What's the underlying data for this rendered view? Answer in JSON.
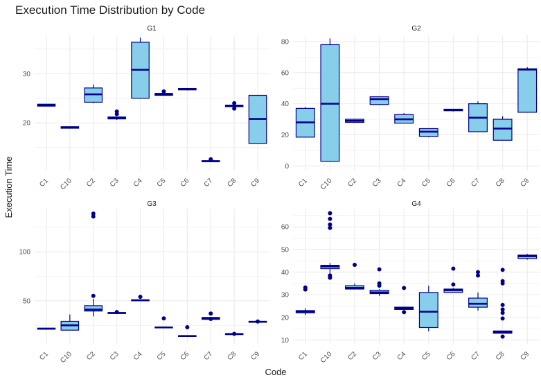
{
  "chart_data": {
    "type": "box",
    "title": "Execution Time Distribution by Code",
    "xlabel": "Code",
    "ylabel": "Execution Time",
    "categories": [
      "C1",
      "C10",
      "C2",
      "C3",
      "C4",
      "C5",
      "C6",
      "C7",
      "C8",
      "C9"
    ],
    "style": {
      "box_fill": "#87CEEB",
      "box_stroke": "#00008B",
      "grid": "#ebebeb"
    },
    "panels": [
      {
        "name": "G1",
        "ylim": [
          10.3,
          37.8
        ],
        "yticks": [
          20,
          30
        ],
        "boxes": [
          {
            "q1": 23.4,
            "med": 23.6,
            "q3": 23.8,
            "lo": 23.4,
            "hi": 23.8,
            "out": []
          },
          {
            "q1": 18.9,
            "med": 19.1,
            "q3": 19.2,
            "lo": 18.9,
            "hi": 19.2,
            "out": []
          },
          {
            "q1": 24.2,
            "med": 25.8,
            "q3": 27.1,
            "lo": 24.0,
            "hi": 27.8,
            "out": []
          },
          {
            "q1": 20.8,
            "med": 21.0,
            "q3": 21.2,
            "lo": 20.6,
            "hi": 21.3,
            "out": [
              21.8,
              22.3
            ]
          },
          {
            "q1": 25.0,
            "med": 30.8,
            "q3": 36.4,
            "lo": 25.0,
            "hi": 37.3,
            "out": []
          },
          {
            "q1": 25.6,
            "med": 25.8,
            "q3": 26.0,
            "lo": 25.6,
            "hi": 26.0,
            "out": [
              26.4
            ]
          },
          {
            "q1": 26.7,
            "med": 26.9,
            "q3": 27.0,
            "lo": 26.6,
            "hi": 27.0,
            "out": []
          },
          {
            "q1": 12.1,
            "med": 12.2,
            "q3": 12.3,
            "lo": 12.0,
            "hi": 12.3,
            "out": [
              12.6
            ]
          },
          {
            "q1": 23.3,
            "med": 23.5,
            "q3": 23.6,
            "lo": 23.2,
            "hi": 23.7,
            "out": [
              22.9,
              24.0
            ]
          },
          {
            "q1": 15.8,
            "med": 20.8,
            "q3": 25.6,
            "lo": 15.8,
            "hi": 25.6,
            "out": []
          }
        ]
      },
      {
        "name": "G2",
        "ylim": [
          -3,
          84
        ],
        "yticks": [
          0,
          20,
          40,
          60,
          80
        ],
        "boxes": [
          {
            "q1": 18.5,
            "med": 28.0,
            "q3": 37.0,
            "lo": 18.5,
            "hi": 38.0,
            "out": []
          },
          {
            "q1": 3.0,
            "med": 40.0,
            "q3": 78.0,
            "lo": 3.0,
            "hi": 82.0,
            "out": []
          },
          {
            "q1": 28.0,
            "med": 29.0,
            "q3": 30.0,
            "lo": 28.0,
            "hi": 30.0,
            "out": []
          },
          {
            "q1": 39.5,
            "med": 43.0,
            "q3": 44.5,
            "lo": 39.5,
            "hi": 44.5,
            "out": []
          },
          {
            "q1": 27.5,
            "med": 30.0,
            "q3": 33.0,
            "lo": 27.5,
            "hi": 34.0,
            "out": []
          },
          {
            "q1": 19.0,
            "med": 22.0,
            "q3": 24.0,
            "lo": 18.5,
            "hi": 24.0,
            "out": []
          },
          {
            "q1": 35.5,
            "med": 36.0,
            "q3": 36.5,
            "lo": 35.0,
            "hi": 36.5,
            "out": []
          },
          {
            "q1": 22.0,
            "med": 31.0,
            "q3": 40.0,
            "lo": 22.0,
            "hi": 41.5,
            "out": []
          },
          {
            "q1": 16.5,
            "med": 24.0,
            "q3": 30.0,
            "lo": 16.5,
            "hi": 32.0,
            "out": []
          },
          {
            "q1": 34.5,
            "med": 62.0,
            "q3": 62.5,
            "lo": 34.5,
            "hi": 63.5,
            "out": []
          }
        ]
      },
      {
        "name": "G3",
        "ylim": [
          6,
          144
        ],
        "yticks": [
          50,
          100
        ],
        "boxes": [
          {
            "q1": 21.0,
            "med": 21.5,
            "q3": 22.0,
            "lo": 21.0,
            "hi": 22.0,
            "out": []
          },
          {
            "q1": 20.0,
            "med": 25.0,
            "q3": 29.0,
            "lo": 20.0,
            "hi": 36.0,
            "out": []
          },
          {
            "q1": 39.5,
            "med": 41.0,
            "q3": 45.0,
            "lo": 34.0,
            "hi": 52.0,
            "out": [
              55.0,
              136.0,
              139.0
            ]
          },
          {
            "q1": 37.0,
            "med": 37.5,
            "q3": 38.0,
            "lo": 36.5,
            "hi": 38.0,
            "out": [
              38.5
            ]
          },
          {
            "q1": 50.0,
            "med": 50.5,
            "q3": 51.0,
            "lo": 50.0,
            "hi": 51.0,
            "out": [
              54.0
            ]
          },
          {
            "q1": 22.5,
            "med": 22.8,
            "q3": 23.0,
            "lo": 22.5,
            "hi": 23.0,
            "out": [
              32.0
            ]
          },
          {
            "q1": 13.5,
            "med": 14.0,
            "q3": 14.3,
            "lo": 13.5,
            "hi": 14.3,
            "out": [
              23.0
            ]
          },
          {
            "q1": 31.0,
            "med": 32.0,
            "q3": 33.0,
            "lo": 30.5,
            "hi": 33.0,
            "out": [
              31.5,
              37.0
            ]
          },
          {
            "q1": 15.5,
            "med": 16.0,
            "q3": 16.5,
            "lo": 15.5,
            "hi": 16.5,
            "out": [
              16.3
            ]
          },
          {
            "q1": 28.0,
            "med": 28.5,
            "q3": 29.0,
            "lo": 28.0,
            "hi": 29.0,
            "out": [
              28.8
            ]
          }
        ]
      },
      {
        "name": "G4",
        "ylim": [
          8.3,
          68
        ],
        "yticks": [
          10,
          20,
          30,
          40,
          50,
          60
        ],
        "boxes": [
          {
            "q1": 22.0,
            "med": 22.5,
            "q3": 23.0,
            "lo": 21.0,
            "hi": 24.0,
            "out": [
              32.3,
              33.2
            ]
          },
          {
            "q1": 41.5,
            "med": 42.5,
            "q3": 43.0,
            "lo": 39.0,
            "hi": 44.0,
            "out": [
              37.5,
              38.5,
              59.5,
              61.0,
              63.5,
              66.0
            ]
          },
          {
            "q1": 32.5,
            "med": 33.0,
            "q3": 34.0,
            "lo": 32.5,
            "hi": 35.0,
            "out": [
              43.2
            ]
          },
          {
            "q1": 30.5,
            "med": 31.0,
            "q3": 32.0,
            "lo": 29.5,
            "hi": 32.5,
            "out": [
              34.0,
              35.0,
              41.2
            ]
          },
          {
            "q1": 23.5,
            "med": 24.0,
            "q3": 24.5,
            "lo": 23.5,
            "hi": 24.5,
            "out": [
              22.3,
              33.0
            ]
          },
          {
            "q1": 15.5,
            "med": 22.5,
            "q3": 31.0,
            "lo": 13.8,
            "hi": 34.0,
            "out": []
          },
          {
            "q1": 31.0,
            "med": 32.0,
            "q3": 32.5,
            "lo": 31.0,
            "hi": 33.0,
            "out": [
              34.5,
              41.5
            ]
          },
          {
            "q1": 24.5,
            "med": 26.0,
            "q3": 28.5,
            "lo": 23.0,
            "hi": 31.0,
            "out": [
              38.5,
              40.0
            ]
          },
          {
            "q1": 13.0,
            "med": 13.5,
            "q3": 14.0,
            "lo": 13.0,
            "hi": 14.0,
            "out": [
              11.5,
              19.5,
              22.0,
              23.5,
              25.5,
              35.0,
              36.0,
              41.0
            ]
          },
          {
            "q1": 46.0,
            "med": 47.0,
            "q3": 47.5,
            "lo": 45.5,
            "hi": 48.0,
            "out": []
          }
        ]
      }
    ]
  }
}
